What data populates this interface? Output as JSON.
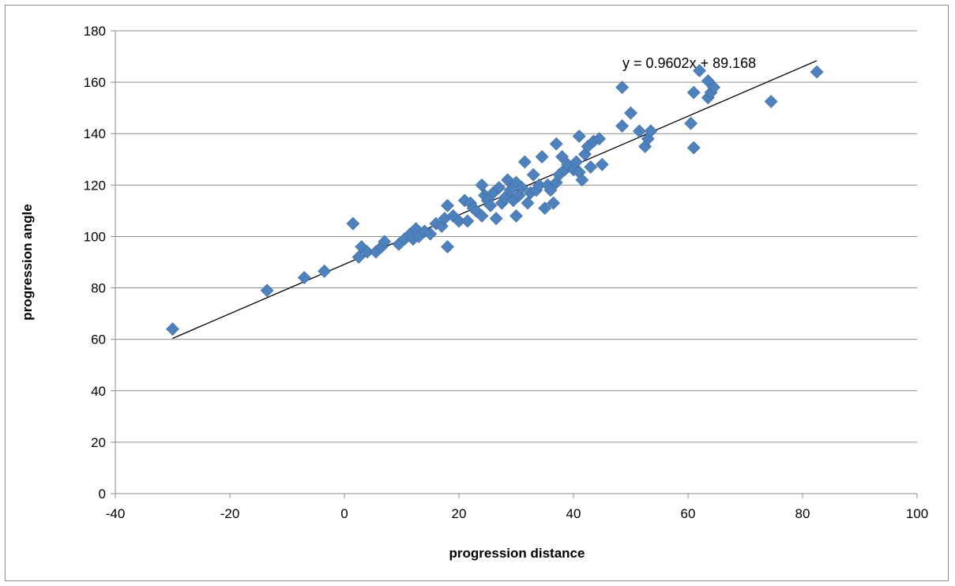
{
  "chart_data": {
    "type": "scatter",
    "title": "",
    "xlabel": "progression distance",
    "ylabel": "progression angle",
    "xlim": [
      -40,
      100
    ],
    "ylim": [
      0,
      180
    ],
    "x_ticks": [
      -40,
      -20,
      0,
      20,
      40,
      60,
      80,
      100
    ],
    "y_ticks": [
      0,
      20,
      40,
      60,
      80,
      100,
      120,
      140,
      160,
      180
    ],
    "grid": "horizontal",
    "marker": "diamond",
    "marker_color": "#4f81bd",
    "trendline": {
      "slope": 0.9602,
      "intercept": 89.168,
      "x_range": [
        -30,
        82.5
      ],
      "label": "y = 0.9602x + 89.168",
      "color": "#000000"
    },
    "series": [
      {
        "points": [
          [
            -30,
            64
          ],
          [
            -13.5,
            79
          ],
          [
            -7,
            84
          ],
          [
            -3.5,
            86.5
          ],
          [
            1.5,
            105
          ],
          [
            2.5,
            92
          ],
          [
            3,
            96
          ],
          [
            4,
            94
          ],
          [
            5.5,
            94
          ],
          [
            6.5,
            96
          ],
          [
            7,
            98
          ],
          [
            9.5,
            97
          ],
          [
            10.5,
            99
          ],
          [
            11.5,
            101
          ],
          [
            12,
            99
          ],
          [
            12.5,
            103
          ],
          [
            13,
            100
          ],
          [
            14,
            102
          ],
          [
            15,
            101
          ],
          [
            16,
            105
          ],
          [
            17,
            104
          ],
          [
            17.5,
            107
          ],
          [
            18,
            112
          ],
          [
            18,
            96
          ],
          [
            19,
            108
          ],
          [
            20,
            106
          ],
          [
            21,
            114
          ],
          [
            21.5,
            106
          ],
          [
            22,
            113
          ],
          [
            22.5,
            111
          ],
          [
            23,
            110
          ],
          [
            24,
            108
          ],
          [
            24,
            120
          ],
          [
            24.5,
            116
          ],
          [
            25,
            114
          ],
          [
            25.5,
            112
          ],
          [
            26,
            117
          ],
          [
            26.5,
            107
          ],
          [
            27,
            119
          ],
          [
            27.5,
            113
          ],
          [
            28,
            115
          ],
          [
            28.5,
            122
          ],
          [
            29,
            118
          ],
          [
            29.5,
            114
          ],
          [
            30,
            108
          ],
          [
            30,
            121
          ],
          [
            30.5,
            116
          ],
          [
            31,
            119
          ],
          [
            31.5,
            129
          ],
          [
            32,
            113
          ],
          [
            32.5,
            117
          ],
          [
            33,
            124
          ],
          [
            33.5,
            118
          ],
          [
            34,
            120
          ],
          [
            34.5,
            131
          ],
          [
            35,
            111
          ],
          [
            35.5,
            120
          ],
          [
            36,
            118
          ],
          [
            36.5,
            113
          ],
          [
            37,
            136
          ],
          [
            37,
            121
          ],
          [
            37.5,
            124
          ],
          [
            38,
            131
          ],
          [
            38.5,
            126
          ],
          [
            39,
            128
          ],
          [
            40,
            126
          ],
          [
            40.5,
            129
          ],
          [
            41,
            139
          ],
          [
            41,
            125
          ],
          [
            41.5,
            122
          ],
          [
            42,
            132
          ],
          [
            42.5,
            135
          ],
          [
            43,
            127
          ],
          [
            43.5,
            137
          ],
          [
            44.5,
            138
          ],
          [
            45,
            128
          ],
          [
            48.5,
            158
          ],
          [
            48.5,
            143
          ],
          [
            50,
            148
          ],
          [
            51.5,
            141
          ],
          [
            52.5,
            135
          ],
          [
            53,
            138
          ],
          [
            53.5,
            141
          ],
          [
            60.5,
            144
          ],
          [
            61,
            156
          ],
          [
            61,
            134.5
          ],
          [
            62,
            164.5
          ],
          [
            63.5,
            154
          ],
          [
            63.5,
            160.5
          ],
          [
            64,
            156
          ],
          [
            64.5,
            158
          ],
          [
            74.5,
            152.5
          ],
          [
            82.5,
            164
          ]
        ]
      }
    ]
  }
}
